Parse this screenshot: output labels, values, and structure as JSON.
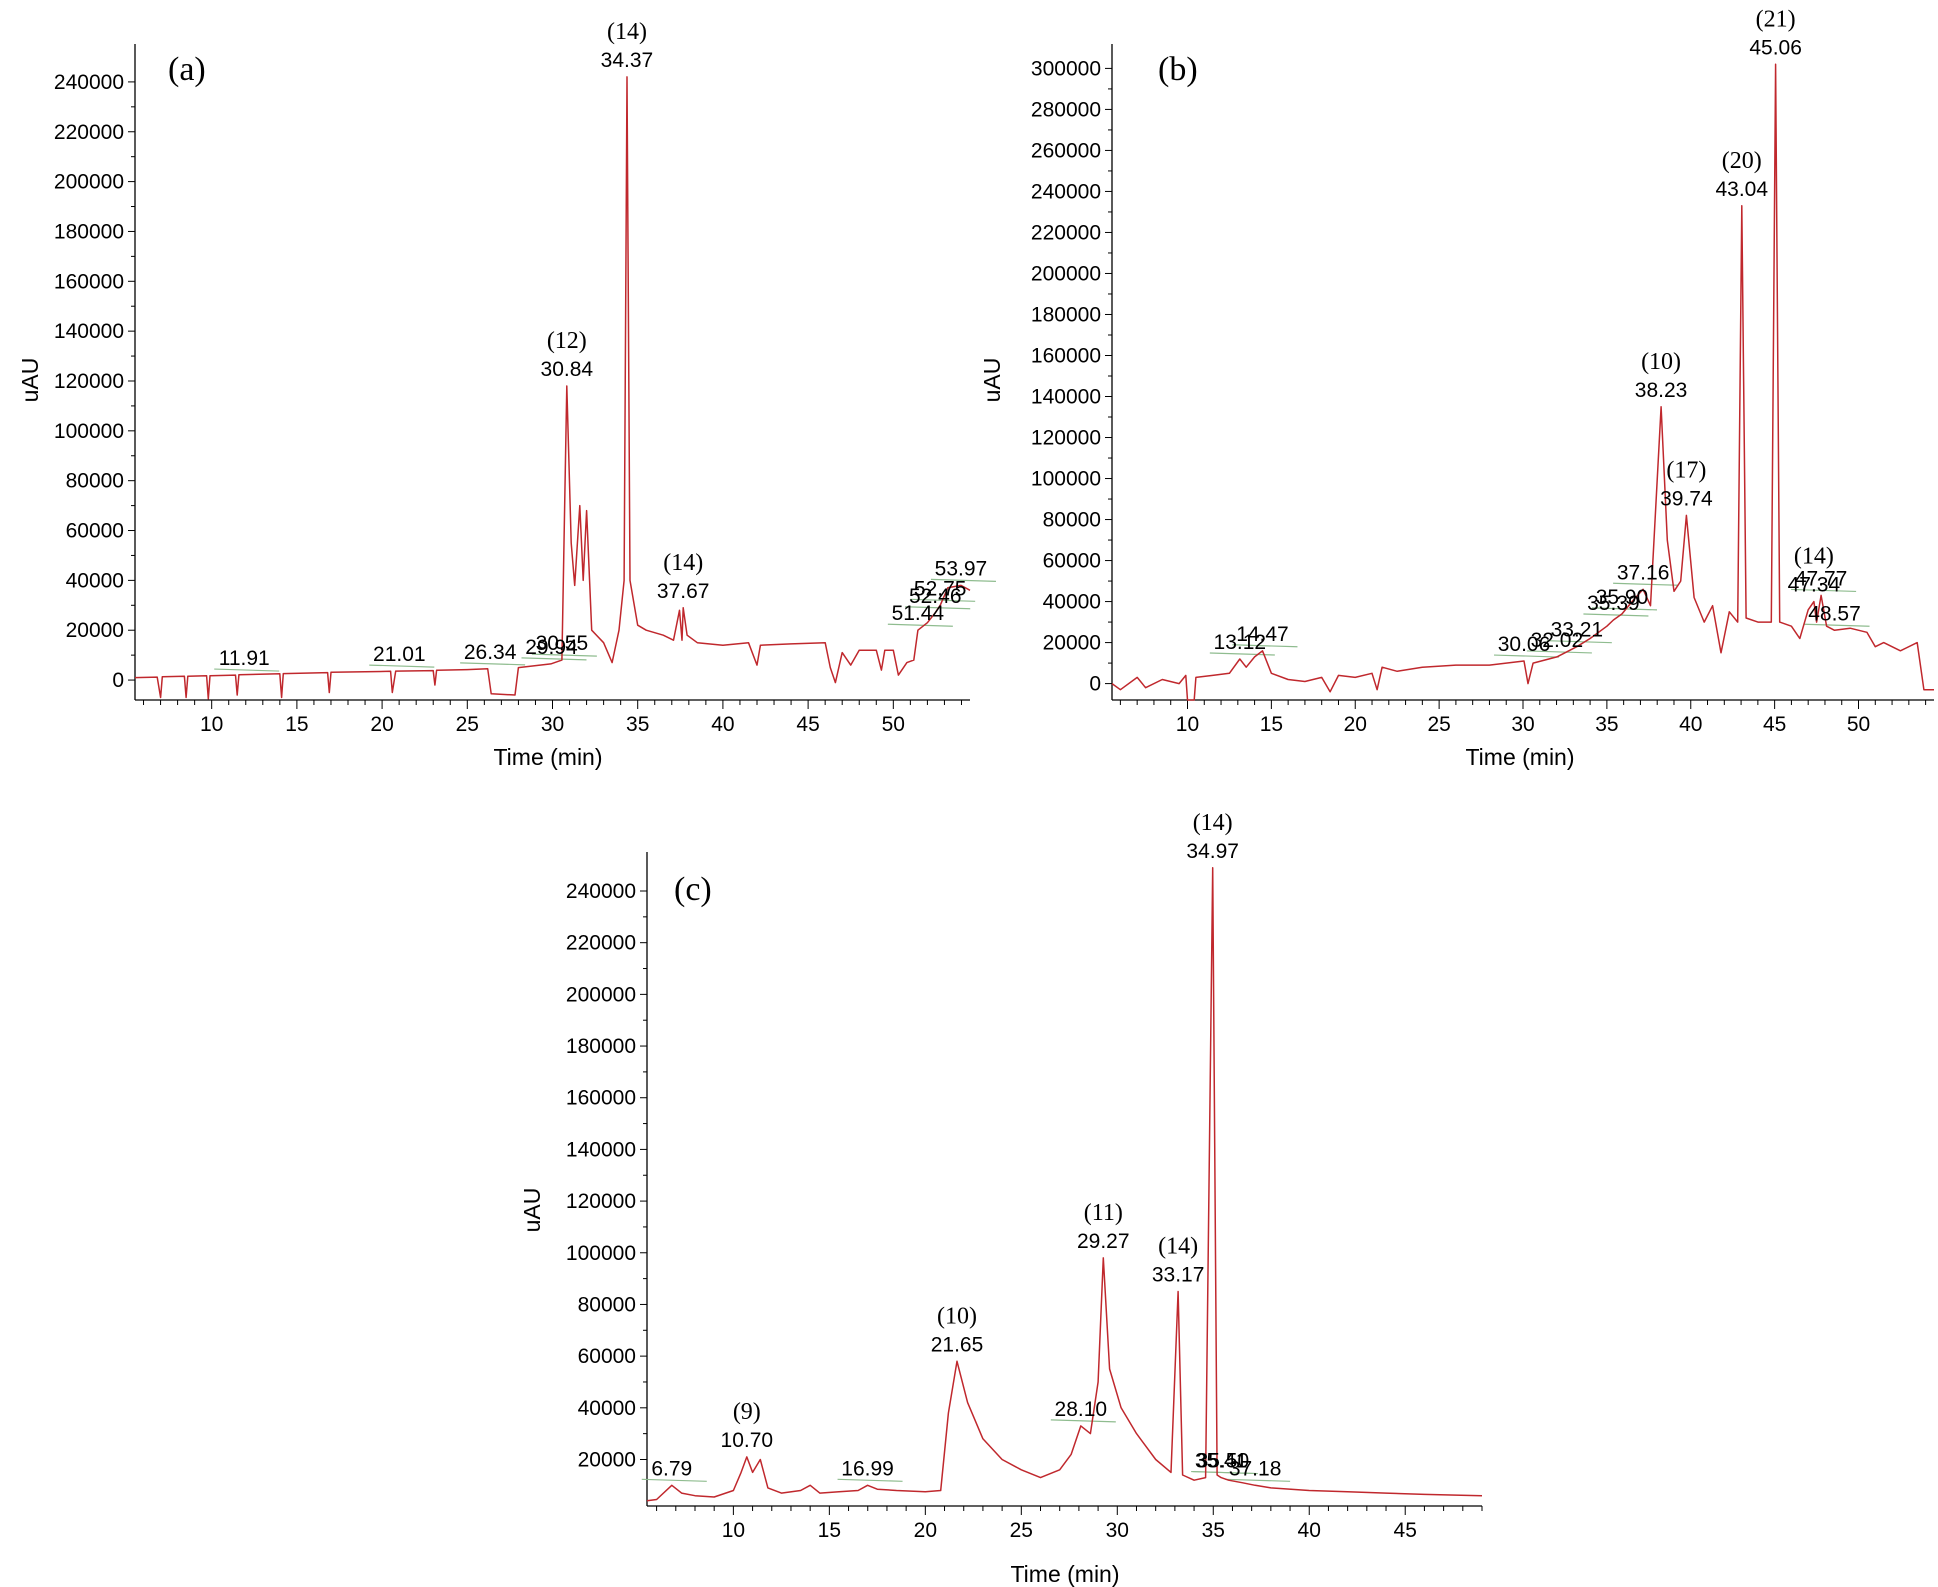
{
  "chart_data": [
    {
      "type": "line",
      "panel_label": "(a)",
      "xlabel": "Time (min)",
      "ylabel": "uAU",
      "xlim": [
        5.5,
        54.5
      ],
      "ylim": [
        -8000,
        252000
      ],
      "xticks": [
        10,
        15,
        20,
        25,
        30,
        35,
        40,
        45,
        50
      ],
      "yticks": [
        0,
        20000,
        40000,
        60000,
        80000,
        100000,
        120000,
        140000,
        160000,
        180000,
        200000,
        220000,
        240000
      ],
      "ytick_labels": [
        "0",
        "20000",
        "40000",
        "60000",
        "80000",
        "100000",
        "120000",
        "140000",
        "160000",
        "180000",
        "200000",
        "220000",
        "240000"
      ],
      "line_color": "#c0282d",
      "baseline_color": "#8fbc8f",
      "trace": [
        [
          5.5,
          1000
        ],
        [
          6.8,
          1200
        ],
        [
          7.0,
          -7000
        ],
        [
          7.1,
          1300
        ],
        [
          8.4,
          1500
        ],
        [
          8.5,
          -7000
        ],
        [
          8.6,
          1500
        ],
        [
          9.7,
          1700
        ],
        [
          9.8,
          -7500
        ],
        [
          9.9,
          1700
        ],
        [
          11.4,
          2000
        ],
        [
          11.5,
          -6000
        ],
        [
          11.6,
          2100
        ],
        [
          14.0,
          2500
        ],
        [
          14.1,
          -7000
        ],
        [
          14.2,
          2600
        ],
        [
          16.8,
          3000
        ],
        [
          16.9,
          -5000
        ],
        [
          17.0,
          3100
        ],
        [
          19.0,
          3300
        ],
        [
          20.5,
          3500
        ],
        [
          20.6,
          -5000
        ],
        [
          20.8,
          3600
        ],
        [
          23.0,
          3800
        ],
        [
          23.1,
          -2000
        ],
        [
          23.2,
          3900
        ],
        [
          25.0,
          4200
        ],
        [
          26.2,
          4500
        ],
        [
          26.4,
          -5500
        ],
        [
          27.8,
          -6000
        ],
        [
          28.0,
          5000
        ],
        [
          29.9,
          6500
        ],
        [
          30.55,
          8000
        ],
        [
          30.84,
          118000
        ],
        [
          31.1,
          55000
        ],
        [
          31.3,
          38000
        ],
        [
          31.6,
          70000
        ],
        [
          31.8,
          40000
        ],
        [
          32.0,
          68000
        ],
        [
          32.3,
          20000
        ],
        [
          33.0,
          15000
        ],
        [
          33.5,
          7000
        ],
        [
          33.9,
          20000
        ],
        [
          34.2,
          40000
        ],
        [
          34.37,
          242000
        ],
        [
          34.55,
          40000
        ],
        [
          35.0,
          22000
        ],
        [
          35.5,
          20000
        ],
        [
          36.5,
          18000
        ],
        [
          37.1,
          16000
        ],
        [
          37.45,
          28000
        ],
        [
          37.6,
          16000
        ],
        [
          37.67,
          29000
        ],
        [
          37.9,
          18000
        ],
        [
          38.5,
          15000
        ],
        [
          40.0,
          14000
        ],
        [
          41.5,
          15000
        ],
        [
          42.0,
          6000
        ],
        [
          42.2,
          14000
        ],
        [
          44.0,
          14500
        ],
        [
          46.0,
          15000
        ],
        [
          46.3,
          5000
        ],
        [
          46.6,
          -1000
        ],
        [
          47.0,
          11000
        ],
        [
          47.5,
          6000
        ],
        [
          48.0,
          12000
        ],
        [
          49.0,
          12000
        ],
        [
          49.3,
          4000
        ],
        [
          49.5,
          12000
        ],
        [
          50.0,
          12000
        ],
        [
          50.3,
          2000
        ],
        [
          50.8,
          7000
        ],
        [
          51.2,
          8000
        ],
        [
          51.44,
          20000
        ],
        [
          52.0,
          23000
        ],
        [
          52.46,
          27000
        ],
        [
          52.75,
          30000
        ],
        [
          53.2,
          37000
        ],
        [
          53.97,
          38000
        ],
        [
          54.5,
          36000
        ]
      ],
      "labels": [
        {
          "x": 11.91,
          "y": 2000,
          "rt": "11.91"
        },
        {
          "x": 21.01,
          "y": 3600,
          "rt": "21.01"
        },
        {
          "x": 26.34,
          "y": 4500,
          "rt": "26.34"
        },
        {
          "x": 29.94,
          "y": 6500,
          "rt": "29.94"
        },
        {
          "x": 30.55,
          "y": 8000,
          "rt": "30.55"
        },
        {
          "x": 30.84,
          "y": 118000,
          "rt": "30.84",
          "compound": "(12)"
        },
        {
          "x": 34.37,
          "y": 242000,
          "rt": "34.37",
          "compound": "(14)"
        },
        {
          "x": 37.67,
          "y": 29000,
          "rt": "37.67",
          "compound": "(14)"
        },
        {
          "x": 51.44,
          "y": 20000,
          "rt": "51.44"
        },
        {
          "x": 52.46,
          "y": 27000,
          "rt": "52.46"
        },
        {
          "x": 52.75,
          "y": 30000,
          "rt": "52.75"
        },
        {
          "x": 53.97,
          "y": 38000,
          "rt": "53.97"
        }
      ]
    },
    {
      "type": "line",
      "panel_label": "(b)",
      "xlabel": "Time (min)",
      "ylabel": "uAU",
      "xlim": [
        5.5,
        54.5
      ],
      "ylim": [
        -8000,
        308000
      ],
      "xticks": [
        10,
        15,
        20,
        25,
        30,
        35,
        40,
        45,
        50
      ],
      "yticks": [
        0,
        20000,
        40000,
        60000,
        80000,
        100000,
        120000,
        140000,
        160000,
        180000,
        200000,
        220000,
        240000,
        260000,
        280000,
        300000
      ],
      "ytick_labels": [
        "0",
        "20000",
        "40000",
        "60000",
        "80000",
        "100000",
        "120000",
        "140000",
        "160000",
        "180000",
        "200000",
        "220000",
        "240000",
        "260000",
        "280000",
        "300000"
      ],
      "line_color": "#c0282d",
      "baseline_color": "#8fbc8f",
      "trace": [
        [
          5.5,
          0
        ],
        [
          6.0,
          -3000
        ],
        [
          7.0,
          3000
        ],
        [
          7.5,
          -2000
        ],
        [
          8.5,
          2000
        ],
        [
          9.5,
          0
        ],
        [
          9.9,
          4000
        ],
        [
          10.0,
          -8000
        ],
        [
          10.4,
          -8000
        ],
        [
          10.5,
          3000
        ],
        [
          11.5,
          4000
        ],
        [
          12.5,
          5000
        ],
        [
          13.12,
          12000
        ],
        [
          13.5,
          8000
        ],
        [
          14.0,
          13000
        ],
        [
          14.47,
          16000
        ],
        [
          15.0,
          5000
        ],
        [
          16.0,
          2000
        ],
        [
          17.0,
          1000
        ],
        [
          18.0,
          3000
        ],
        [
          18.5,
          -4000
        ],
        [
          19.0,
          4000
        ],
        [
          20.0,
          3000
        ],
        [
          21.0,
          5000
        ],
        [
          21.3,
          -3000
        ],
        [
          21.6,
          8000
        ],
        [
          22.5,
          6000
        ],
        [
          24.0,
          8000
        ],
        [
          26.0,
          9000
        ],
        [
          28.0,
          9000
        ],
        [
          30.06,
          11000
        ],
        [
          30.3,
          0
        ],
        [
          30.6,
          10000
        ],
        [
          32.02,
          13000
        ],
        [
          33.21,
          18000
        ],
        [
          34.0,
          22000
        ],
        [
          35.0,
          28000
        ],
        [
          35.39,
          31000
        ],
        [
          35.9,
          34000
        ],
        [
          36.5,
          40000
        ],
        [
          37.16,
          46000
        ],
        [
          37.6,
          38000
        ],
        [
          38.23,
          135000
        ],
        [
          38.6,
          70000
        ],
        [
          39.0,
          45000
        ],
        [
          39.4,
          50000
        ],
        [
          39.74,
          82000
        ],
        [
          40.2,
          42000
        ],
        [
          40.8,
          30000
        ],
        [
          41.3,
          38000
        ],
        [
          41.8,
          15000
        ],
        [
          42.3,
          35000
        ],
        [
          42.8,
          30000
        ],
        [
          43.04,
          233000
        ],
        [
          43.3,
          32000
        ],
        [
          44.0,
          30000
        ],
        [
          44.8,
          30000
        ],
        [
          45.06,
          302000
        ],
        [
          45.3,
          30000
        ],
        [
          46.0,
          28000
        ],
        [
          46.5,
          22000
        ],
        [
          47.0,
          36000
        ],
        [
          47.34,
          40000
        ],
        [
          47.5,
          30000
        ],
        [
          47.77,
          43000
        ],
        [
          48.1,
          28000
        ],
        [
          48.57,
          26000
        ],
        [
          49.5,
          27000
        ],
        [
          50.5,
          25000
        ],
        [
          51.0,
          18000
        ],
        [
          51.5,
          20000
        ],
        [
          52.5,
          16000
        ],
        [
          53.5,
          20000
        ],
        [
          53.9,
          -3000
        ],
        [
          54.5,
          -3000
        ]
      ],
      "labels": [
        {
          "x": 13.12,
          "y": 12000,
          "rt": "13.12"
        },
        {
          "x": 14.47,
          "y": 16000,
          "rt": "14.47"
        },
        {
          "x": 30.06,
          "y": 11000,
          "rt": "30.06"
        },
        {
          "x": 32.02,
          "y": 13000,
          "rt": "32.02"
        },
        {
          "x": 33.21,
          "y": 18000,
          "rt": "33.21"
        },
        {
          "x": 35.39,
          "y": 31000,
          "rt": "35.39"
        },
        {
          "x": 35.9,
          "y": 34000,
          "rt": "35.90"
        },
        {
          "x": 37.16,
          "y": 46000,
          "rt": "37.16"
        },
        {
          "x": 38.23,
          "y": 135000,
          "rt": "38.23",
          "compound": "(10)"
        },
        {
          "x": 39.74,
          "y": 82000,
          "rt": "39.74",
          "compound": "(17)"
        },
        {
          "x": 43.04,
          "y": 233000,
          "rt": "43.04",
          "compound": "(20)"
        },
        {
          "x": 45.06,
          "y": 302000,
          "rt": "45.06",
          "compound": "(21)"
        },
        {
          "x": 47.34,
          "y": 40000,
          "rt": "47.34",
          "compound": "(14)"
        },
        {
          "x": 47.77,
          "y": 43000,
          "rt": "47.77"
        },
        {
          "x": 48.57,
          "y": 26000,
          "rt": "48.57"
        }
      ]
    },
    {
      "type": "line",
      "panel_label": "(c)",
      "xlabel": "Time (min)",
      "ylabel": "uAU",
      "xlim": [
        5.5,
        49
      ],
      "ylim": [
        2000,
        252000
      ],
      "xticks": [
        10,
        15,
        20,
        25,
        30,
        35,
        40,
        45
      ],
      "yticks": [
        20000,
        40000,
        60000,
        80000,
        100000,
        120000,
        140000,
        160000,
        180000,
        200000,
        220000,
        240000
      ],
      "ytick_labels": [
        "20000",
        "40000",
        "60000",
        "80000",
        "100000",
        "120000",
        "140000",
        "160000",
        "180000",
        "200000",
        "220000",
        "240000"
      ],
      "line_color": "#c0282d",
      "baseline_color": "#8fbc8f",
      "trace": [
        [
          5.5,
          4000
        ],
        [
          6.0,
          4500
        ],
        [
          6.79,
          10000
        ],
        [
          7.3,
          7000
        ],
        [
          8.0,
          6000
        ],
        [
          9.0,
          5500
        ],
        [
          10.0,
          8000
        ],
        [
          10.4,
          15000
        ],
        [
          10.7,
          21000
        ],
        [
          11.0,
          15000
        ],
        [
          11.4,
          20000
        ],
        [
          11.8,
          9000
        ],
        [
          12.5,
          7000
        ],
        [
          13.5,
          8000
        ],
        [
          14.0,
          10000
        ],
        [
          14.5,
          7000
        ],
        [
          15.5,
          7500
        ],
        [
          16.5,
          8000
        ],
        [
          16.99,
          10000
        ],
        [
          17.5,
          8500
        ],
        [
          18.5,
          8000
        ],
        [
          20.0,
          7500
        ],
        [
          20.8,
          8000
        ],
        [
          21.2,
          38000
        ],
        [
          21.65,
          58000
        ],
        [
          22.2,
          42000
        ],
        [
          23.0,
          28000
        ],
        [
          24.0,
          20000
        ],
        [
          25.0,
          16000
        ],
        [
          26.0,
          13000
        ],
        [
          27.0,
          16000
        ],
        [
          27.6,
          22000
        ],
        [
          28.1,
          33000
        ],
        [
          28.6,
          30000
        ],
        [
          29.0,
          50000
        ],
        [
          29.27,
          98000
        ],
        [
          29.6,
          55000
        ],
        [
          30.2,
          40000
        ],
        [
          31.0,
          30000
        ],
        [
          32.0,
          20000
        ],
        [
          32.8,
          15000
        ],
        [
          33.17,
          85000
        ],
        [
          33.4,
          14000
        ],
        [
          34.0,
          12000
        ],
        [
          34.6,
          13000
        ],
        [
          34.97,
          249000
        ],
        [
          35.2,
          14000
        ],
        [
          35.41,
          13000
        ],
        [
          35.8,
          12000
        ],
        [
          36.5,
          11000
        ],
        [
          37.18,
          10000
        ],
        [
          38.0,
          9000
        ],
        [
          40.0,
          8000
        ],
        [
          42.0,
          7500
        ],
        [
          44.0,
          7000
        ],
        [
          46.0,
          6500
        ],
        [
          49.0,
          6000
        ]
      ],
      "labels": [
        {
          "x": 6.79,
          "y": 10000,
          "rt": "6.79"
        },
        {
          "x": 10.7,
          "y": 21000,
          "rt": "10.70",
          "compound": "(9)"
        },
        {
          "x": 16.99,
          "y": 10000,
          "rt": "16.99"
        },
        {
          "x": 21.65,
          "y": 58000,
          "rt": "21.65",
          "compound": "(10)"
        },
        {
          "x": 28.1,
          "y": 33000,
          "rt": "28.10"
        },
        {
          "x": 29.27,
          "y": 98000,
          "rt": "29.27",
          "compound": "(11)"
        },
        {
          "x": 33.17,
          "y": 85000,
          "rt": "33.17",
          "compound": "(14)"
        },
        {
          "x": 34.97,
          "y": 249000,
          "rt": "34.97",
          "compound": "(14)"
        },
        {
          "x": 35.41,
          "y": 13000,
          "rt": "35.41"
        },
        {
          "x": 35.5,
          "y": 13000,
          "rt": "35.50"
        },
        {
          "x": 37.18,
          "y": 10000,
          "rt": "37.18"
        }
      ]
    }
  ]
}
